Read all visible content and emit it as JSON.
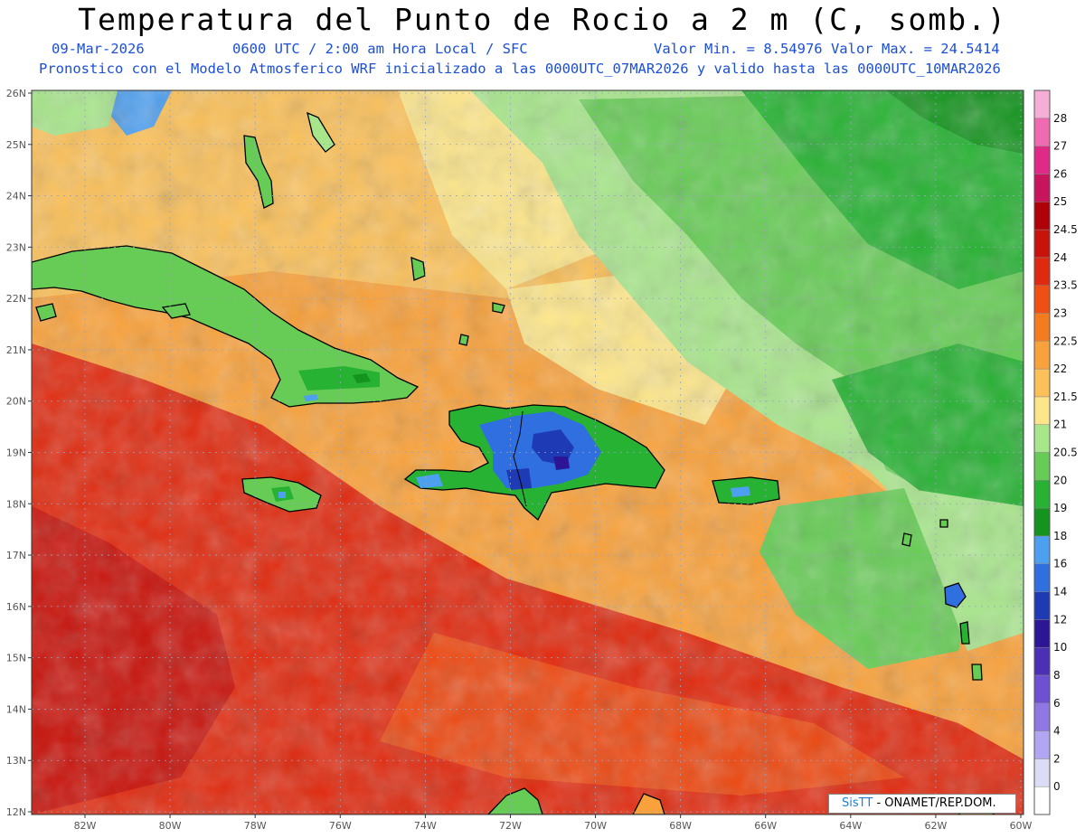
{
  "title": "Temperatura del Punto de Rocio a 2 m (C, somb.)",
  "subtitle": {
    "date": "09-Mar-2026",
    "time": "0600 UTC / 2:00 am Hora Local / SFC",
    "minmax": "Valor Min. = 8.54976  Valor Max. = 24.5414",
    "model": "Pronostico con el Modelo Atmosferico WRF inicializado a las 0000UTC_07MAR2026 y valido hasta las  0000UTC_10MAR2026"
  },
  "lat_labels": [
    "26N",
    "25N",
    "24N",
    "23N",
    "22N",
    "21N",
    "20N",
    "19N",
    "18N",
    "17N",
    "16N",
    "15N",
    "14N",
    "13N",
    "12N"
  ],
  "lon_labels": [
    "82W",
    "80W",
    "78W",
    "76W",
    "74W",
    "72W",
    "70W",
    "68W",
    "66W",
    "64W",
    "62W",
    "60W"
  ],
  "colorbar": {
    "levels": [
      "0",
      "2",
      "4",
      "6",
      "8",
      "10",
      "12",
      "14",
      "16",
      "18",
      "19",
      "20",
      "20.5",
      "21",
      "21.5",
      "22",
      "22.5",
      "23",
      "23.5",
      "24",
      "24.5",
      "25",
      "26",
      "27",
      "28"
    ],
    "colors": [
      "#ffffff",
      "#dcdcf6",
      "#b0a6f2",
      "#8f78e4",
      "#6e50d2",
      "#4b2fb4",
      "#2c1696",
      "#1e3ab4",
      "#2f6fe0",
      "#4d9ff0",
      "#14941e",
      "#27b233",
      "#66cc55",
      "#a8e68c",
      "#fde68a",
      "#fbc058",
      "#f9a13a",
      "#f57b1e",
      "#ef4f13",
      "#e02a0f",
      "#c8120a",
      "#b00008",
      "#c8145c",
      "#e02a86",
      "#f06ab2",
      "#f6aed6"
    ]
  },
  "credit": {
    "brand": "SisTT",
    "text": "- ONAMET/REP.DOM."
  },
  "colors": {
    "land_outline": "#000000",
    "grid": "#9aa3c0",
    "frame": "#333333"
  }
}
